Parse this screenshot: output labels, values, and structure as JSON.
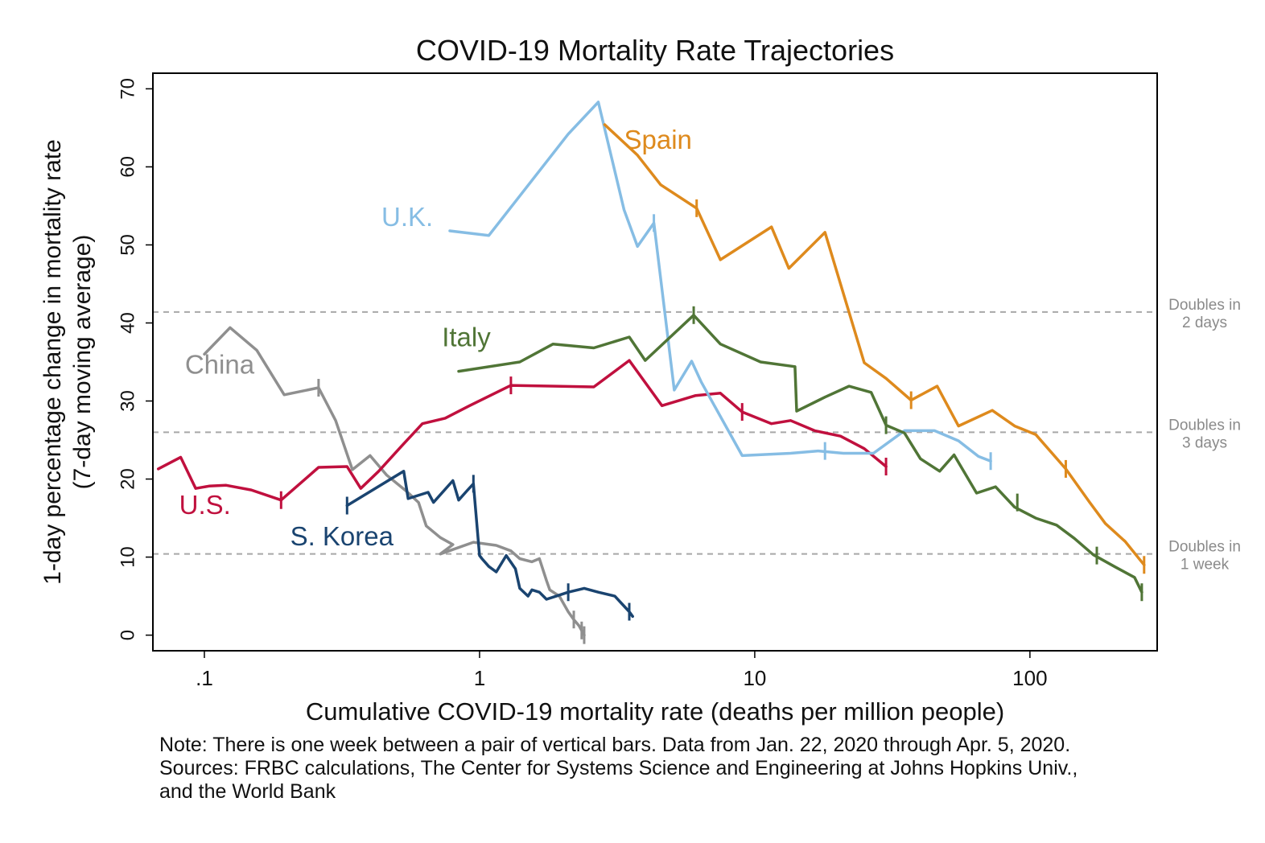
{
  "chart_data": {
    "type": "line",
    "title": "COVID-19 Mortality Rate Trajectories",
    "xlabel": "Cumulative COVID-19 mortality rate (deaths per million people)",
    "ylabel_line1": "1-day percentage change in mortality rate",
    "ylabel_line2": "(7-day moving average)",
    "x_scale": "log",
    "xlim": [
      0.065,
      290
    ],
    "ylim": [
      -2,
      72
    ],
    "x_ticks": [
      {
        "value": 0.1,
        "label": ".1"
      },
      {
        "value": 1,
        "label": "1"
      },
      {
        "value": 10,
        "label": "10"
      },
      {
        "value": 100,
        "label": "100"
      }
    ],
    "y_ticks": [
      {
        "value": 0,
        "label": "0"
      },
      {
        "value": 10,
        "label": "10"
      },
      {
        "value": 20,
        "label": "20"
      },
      {
        "value": 30,
        "label": "30"
      },
      {
        "value": 40,
        "label": "40"
      },
      {
        "value": 50,
        "label": "50"
      },
      {
        "value": 60,
        "label": "60"
      },
      {
        "value": 70,
        "label": "70"
      }
    ],
    "grid": false,
    "reference_lines": [
      {
        "y": 41.4,
        "label_line1": "Doubles in",
        "label_line2": "2 days",
        "color": "#a8a8a8"
      },
      {
        "y": 26.0,
        "label_line1": "Doubles in",
        "label_line2": "3 days",
        "color": "#a8a8a8"
      },
      {
        "y": 10.4,
        "label_line1": "Doubles in",
        "label_line2": "1 week",
        "color": "#a8a8a8"
      }
    ],
    "series": [
      {
        "name": "China",
        "color": "#8f8f8f",
        "label_at": {
          "x": 0.085,
          "y": 33.5
        },
        "points": [
          [
            0.1,
            36.0
          ],
          [
            0.124,
            39.4
          ],
          [
            0.155,
            36.5
          ],
          [
            0.195,
            30.8
          ],
          [
            0.26,
            31.7
          ],
          [
            0.3,
            27.5
          ],
          [
            0.345,
            21.2
          ],
          [
            0.4,
            23.0
          ],
          [
            0.46,
            20.5
          ],
          [
            0.54,
            18.5
          ],
          [
            0.6,
            17.0
          ],
          [
            0.64,
            14.0
          ],
          [
            0.72,
            12.5
          ],
          [
            0.8,
            11.6
          ],
          [
            0.72,
            10.4
          ],
          [
            0.95,
            11.9
          ],
          [
            1.15,
            11.5
          ],
          [
            1.3,
            10.8
          ],
          [
            1.4,
            9.8
          ],
          [
            1.55,
            9.4
          ],
          [
            1.65,
            9.8
          ],
          [
            1.75,
            7.0
          ],
          [
            1.8,
            5.8
          ],
          [
            1.95,
            5.0
          ],
          [
            2.1,
            3.0
          ],
          [
            2.2,
            2.0
          ],
          [
            2.3,
            1.2
          ],
          [
            2.4,
            0.0
          ]
        ],
        "week_marks": [
          [
            0.26,
            31.7
          ],
          [
            2.2,
            2.0
          ],
          [
            2.35,
            0.6
          ],
          [
            2.4,
            0.0
          ]
        ]
      },
      {
        "name": "U.S.",
        "color": "#c0103e",
        "label_at": {
          "x": 0.081,
          "y": 15.5
        },
        "points": [
          [
            0.068,
            21.3
          ],
          [
            0.082,
            22.8
          ],
          [
            0.093,
            18.8
          ],
          [
            0.104,
            19.1
          ],
          [
            0.12,
            19.2
          ],
          [
            0.148,
            18.6
          ],
          [
            0.19,
            17.3
          ],
          [
            0.26,
            21.5
          ],
          [
            0.33,
            21.6
          ],
          [
            0.37,
            18.8
          ],
          [
            0.43,
            21.0
          ],
          [
            0.52,
            24.2
          ],
          [
            0.62,
            27.1
          ],
          [
            0.75,
            27.8
          ],
          [
            0.92,
            29.4
          ],
          [
            1.3,
            32.0
          ],
          [
            1.9,
            31.9
          ],
          [
            2.6,
            31.8
          ],
          [
            3.5,
            35.2
          ],
          [
            4.6,
            29.4
          ],
          [
            6.1,
            30.7
          ],
          [
            7.5,
            31.0
          ],
          [
            9.0,
            28.6
          ],
          [
            11.5,
            27.1
          ],
          [
            13.5,
            27.5
          ],
          [
            16.5,
            26.2
          ],
          [
            20.5,
            25.5
          ],
          [
            25.0,
            23.9
          ],
          [
            30.0,
            21.6
          ]
        ],
        "week_marks": [
          [
            0.19,
            17.3
          ],
          [
            1.3,
            32.0
          ],
          [
            9.0,
            28.6
          ],
          [
            30.0,
            21.6
          ]
        ]
      },
      {
        "name": "S. Korea",
        "color": "#1a4470",
        "label_at": {
          "x": 0.205,
          "y": 11.5
        },
        "points": [
          [
            0.33,
            16.6
          ],
          [
            0.53,
            21.0
          ],
          [
            0.55,
            17.5
          ],
          [
            0.65,
            18.3
          ],
          [
            0.68,
            17.0
          ],
          [
            0.8,
            19.8
          ],
          [
            0.84,
            17.3
          ],
          [
            0.9,
            18.5
          ],
          [
            0.95,
            19.4
          ],
          [
            1.0,
            10.2
          ],
          [
            1.02,
            9.8
          ],
          [
            1.08,
            8.8
          ],
          [
            1.15,
            8.1
          ],
          [
            1.25,
            10.2
          ],
          [
            1.35,
            8.5
          ],
          [
            1.4,
            6.0
          ],
          [
            1.5,
            5.0
          ],
          [
            1.55,
            5.8
          ],
          [
            1.65,
            5.5
          ],
          [
            1.75,
            4.6
          ],
          [
            1.9,
            5.0
          ],
          [
            2.1,
            5.5
          ],
          [
            2.4,
            6.0
          ],
          [
            2.7,
            5.5
          ],
          [
            3.1,
            5.0
          ],
          [
            3.5,
            3.0
          ],
          [
            3.6,
            2.4
          ]
        ],
        "week_marks": [
          [
            0.33,
            16.6
          ],
          [
            0.95,
            19.4
          ],
          [
            2.1,
            5.5
          ],
          [
            3.5,
            3.0
          ]
        ]
      },
      {
        "name": "U.K.",
        "color": "#86bde4",
        "label_at": {
          "x": 0.44,
          "y": 52.4
        },
        "points": [
          [
            0.78,
            51.8
          ],
          [
            1.08,
            51.2
          ],
          [
            2.1,
            64.2
          ],
          [
            2.7,
            68.3
          ],
          [
            3.35,
            54.5
          ],
          [
            3.75,
            49.8
          ],
          [
            4.3,
            52.8
          ],
          [
            5.1,
            31.4
          ],
          [
            5.9,
            35.1
          ],
          [
            6.4,
            32.4
          ],
          [
            9.0,
            23.0
          ],
          [
            13.5,
            23.3
          ],
          [
            17.0,
            23.6
          ],
          [
            21.0,
            23.3
          ],
          [
            27.0,
            23.3
          ],
          [
            35.0,
            26.2
          ],
          [
            45.0,
            26.2
          ],
          [
            55.0,
            24.9
          ],
          [
            65.0,
            22.9
          ],
          [
            72.0,
            22.3
          ]
        ],
        "week_marks": [
          [
            4.3,
            52.8
          ],
          [
            18.0,
            23.6
          ],
          [
            72.0,
            22.3
          ]
        ]
      },
      {
        "name": "Spain",
        "color": "#de8a1d",
        "label_at": {
          "x": 3.35,
          "y": 62.3
        },
        "points": [
          [
            2.85,
            65.4
          ],
          [
            3.75,
            61.5
          ],
          [
            4.55,
            57.7
          ],
          [
            6.15,
            54.7
          ],
          [
            7.5,
            48.1
          ],
          [
            11.5,
            52.3
          ],
          [
            13.3,
            47.0
          ],
          [
            18.0,
            51.6
          ],
          [
            25.0,
            34.9
          ],
          [
            30.0,
            32.9
          ],
          [
            37.0,
            30.1
          ],
          [
            46.0,
            31.9
          ],
          [
            55.0,
            26.8
          ],
          [
            73.0,
            28.8
          ],
          [
            88.0,
            26.8
          ],
          [
            105.0,
            25.7
          ],
          [
            135.0,
            21.3
          ],
          [
            165.0,
            17.0
          ],
          [
            188.0,
            14.3
          ],
          [
            222.0,
            12.0
          ],
          [
            260.0,
            9.0
          ]
        ],
        "week_marks": [
          [
            6.15,
            54.7
          ],
          [
            37.0,
            30.1
          ],
          [
            135.0,
            21.3
          ],
          [
            260.0,
            9.0
          ]
        ]
      },
      {
        "name": "Italy",
        "color": "#507536",
        "label_at": {
          "x": 0.73,
          "y": 37.0
        },
        "points": [
          [
            0.84,
            33.8
          ],
          [
            1.4,
            35.0
          ],
          [
            1.85,
            37.3
          ],
          [
            2.6,
            36.8
          ],
          [
            3.5,
            38.2
          ],
          [
            4.0,
            35.2
          ],
          [
            6.0,
            41.0
          ],
          [
            7.5,
            37.3
          ],
          [
            10.5,
            35.0
          ],
          [
            14.0,
            34.4
          ],
          [
            14.2,
            28.7
          ],
          [
            18.0,
            30.5
          ],
          [
            22.0,
            31.9
          ],
          [
            26.5,
            31.1
          ],
          [
            30.0,
            26.9
          ],
          [
            35.0,
            25.9
          ],
          [
            40.0,
            22.6
          ],
          [
            47.0,
            21.0
          ],
          [
            53.0,
            23.1
          ],
          [
            64.0,
            18.2
          ],
          [
            75.0,
            19.0
          ],
          [
            88.0,
            16.4
          ],
          [
            105.0,
            15.0
          ],
          [
            125.0,
            14.1
          ],
          [
            145.0,
            12.4
          ],
          [
            170.0,
            10.3
          ],
          [
            205.0,
            8.7
          ],
          [
            240.0,
            7.4
          ],
          [
            255.0,
            5.5
          ]
        ],
        "week_marks": [
          [
            6.0,
            41.0
          ],
          [
            30.0,
            26.9
          ],
          [
            90.0,
            17.0
          ],
          [
            175.0,
            10.2
          ],
          [
            255.0,
            5.5
          ]
        ]
      }
    ]
  },
  "note": {
    "line1": "Note: There is one week between a pair of vertical bars. Data from Jan. 22, 2020 through Apr. 5, 2020.",
    "line2": "Sources: FRBC calculations, The Center for Systems Science and Engineering at Johns Hopkins Univ.,",
    "line3": "and the World Bank"
  }
}
